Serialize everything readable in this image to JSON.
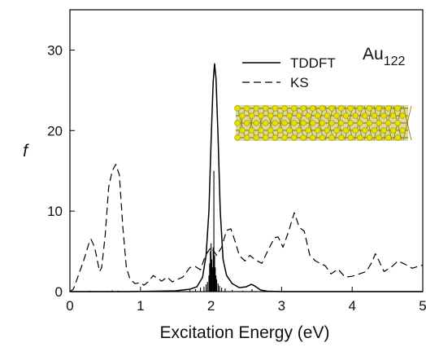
{
  "chart_data": {
    "type": "line",
    "xlabel": "Excitation Energy (eV)",
    "ylabel": "f",
    "xlim": [
      0,
      5
    ],
    "ylim": [
      0,
      35
    ],
    "xticks": [
      0,
      1,
      2,
      3,
      4,
      5
    ],
    "xtick_labels": [
      "0",
      "1",
      "2",
      "3",
      "4",
      "5"
    ],
    "yticks": [
      0,
      10,
      20,
      30
    ],
    "ytick_labels": [
      "0",
      "10",
      "20",
      "30"
    ],
    "legend_position": "top-right",
    "annotation": {
      "main": "Au",
      "subscript": "122"
    },
    "series": [
      {
        "name": "TDDFT",
        "style": "solid",
        "color": "#000000",
        "points": [
          [
            0.0,
            0.0
          ],
          [
            0.8,
            0.0
          ],
          [
            1.2,
            0.05
          ],
          [
            1.5,
            0.1
          ],
          [
            1.7,
            0.3
          ],
          [
            1.8,
            0.6
          ],
          [
            1.88,
            1.8
          ],
          [
            1.93,
            4.5
          ],
          [
            1.97,
            10.0
          ],
          [
            2.0,
            18.5
          ],
          [
            2.03,
            26.0
          ],
          [
            2.05,
            28.3
          ],
          [
            2.07,
            26.5
          ],
          [
            2.1,
            19.0
          ],
          [
            2.13,
            10.0
          ],
          [
            2.17,
            4.0
          ],
          [
            2.22,
            2.0
          ],
          [
            2.3,
            1.0
          ],
          [
            2.4,
            0.5
          ],
          [
            2.5,
            0.6
          ],
          [
            2.57,
            0.9
          ],
          [
            2.62,
            0.7
          ],
          [
            2.7,
            0.2
          ],
          [
            2.8,
            0.05
          ],
          [
            3.0,
            0.0
          ],
          [
            5.0,
            0.0
          ]
        ]
      },
      {
        "name": "KS",
        "style": "dashed",
        "color": "#000000",
        "points": [
          [
            0.0,
            0.0
          ],
          [
            0.05,
            0.3
          ],
          [
            0.12,
            2.0
          ],
          [
            0.2,
            4.0
          ],
          [
            0.27,
            6.0
          ],
          [
            0.3,
            6.5
          ],
          [
            0.35,
            5.5
          ],
          [
            0.42,
            2.5
          ],
          [
            0.45,
            3.0
          ],
          [
            0.5,
            7.0
          ],
          [
            0.55,
            13.0
          ],
          [
            0.6,
            15.0
          ],
          [
            0.65,
            15.8
          ],
          [
            0.7,
            14.5
          ],
          [
            0.75,
            8.0
          ],
          [
            0.8,
            3.0
          ],
          [
            0.85,
            1.6
          ],
          [
            0.92,
            1.0
          ],
          [
            1.0,
            1.1
          ],
          [
            1.05,
            0.8
          ],
          [
            1.12,
            1.3
          ],
          [
            1.18,
            2.0
          ],
          [
            1.25,
            1.6
          ],
          [
            1.3,
            1.3
          ],
          [
            1.38,
            1.8
          ],
          [
            1.45,
            1.2
          ],
          [
            1.52,
            1.5
          ],
          [
            1.6,
            1.8
          ],
          [
            1.7,
            3.0
          ],
          [
            1.78,
            3.1
          ],
          [
            1.85,
            2.7
          ],
          [
            1.92,
            4.5
          ],
          [
            2.0,
            5.5
          ],
          [
            2.08,
            4.5
          ],
          [
            2.15,
            5.5
          ],
          [
            2.22,
            7.6
          ],
          [
            2.28,
            7.8
          ],
          [
            2.35,
            6.0
          ],
          [
            2.4,
            4.5
          ],
          [
            2.48,
            3.8
          ],
          [
            2.55,
            4.5
          ],
          [
            2.62,
            4.0
          ],
          [
            2.72,
            3.5
          ],
          [
            2.8,
            5.0
          ],
          [
            2.9,
            6.7
          ],
          [
            2.95,
            6.8
          ],
          [
            3.02,
            5.5
          ],
          [
            3.1,
            7.5
          ],
          [
            3.18,
            9.8
          ],
          [
            3.25,
            8.0
          ],
          [
            3.32,
            7.5
          ],
          [
            3.4,
            4.5
          ],
          [
            3.48,
            3.8
          ],
          [
            3.55,
            3.5
          ],
          [
            3.62,
            3.2
          ],
          [
            3.7,
            2.2
          ],
          [
            3.8,
            2.8
          ],
          [
            3.9,
            1.8
          ],
          [
            4.0,
            1.9
          ],
          [
            4.1,
            2.2
          ],
          [
            4.2,
            2.5
          ],
          [
            4.27,
            3.5
          ],
          [
            4.33,
            4.7
          ],
          [
            4.38,
            3.8
          ],
          [
            4.45,
            2.5
          ],
          [
            4.55,
            3.0
          ],
          [
            4.65,
            3.8
          ],
          [
            4.75,
            3.4
          ],
          [
            4.85,
            2.9
          ],
          [
            5.0,
            3.3
          ]
        ]
      }
    ],
    "stick_spectrum": [
      [
        0.2,
        0.08
      ],
      [
        0.28,
        0.12
      ],
      [
        0.33,
        0.1
      ],
      [
        0.52,
        0.1
      ],
      [
        0.6,
        0.15
      ],
      [
        0.68,
        0.12
      ],
      [
        0.9,
        0.06
      ],
      [
        1.1,
        0.08
      ],
      [
        1.3,
        0.1
      ],
      [
        1.5,
        0.12
      ],
      [
        1.7,
        0.2
      ],
      [
        1.78,
        0.3
      ],
      [
        1.85,
        0.5
      ],
      [
        1.9,
        0.6
      ],
      [
        1.93,
        0.9
      ],
      [
        1.95,
        1.2
      ],
      [
        1.97,
        2.0
      ],
      [
        1.98,
        3.5
      ],
      [
        1.99,
        5.0
      ],
      [
        2.0,
        6.0
      ],
      [
        2.01,
        4.0
      ],
      [
        2.02,
        3.0
      ],
      [
        2.03,
        5.5
      ],
      [
        2.04,
        15.0
      ],
      [
        2.05,
        4.5
      ],
      [
        2.06,
        3.0
      ],
      [
        2.07,
        2.0
      ],
      [
        2.08,
        1.5
      ],
      [
        2.1,
        1.0
      ],
      [
        2.12,
        0.7
      ],
      [
        2.15,
        0.5
      ],
      [
        2.2,
        0.4
      ],
      [
        2.3,
        0.2
      ],
      [
        2.45,
        0.12
      ],
      [
        2.58,
        0.3
      ],
      [
        2.75,
        0.1
      ],
      [
        3.0,
        0.06
      ],
      [
        3.4,
        0.05
      ],
      [
        3.9,
        0.04
      ],
      [
        4.4,
        0.04
      ],
      [
        4.9,
        0.03
      ]
    ]
  }
}
